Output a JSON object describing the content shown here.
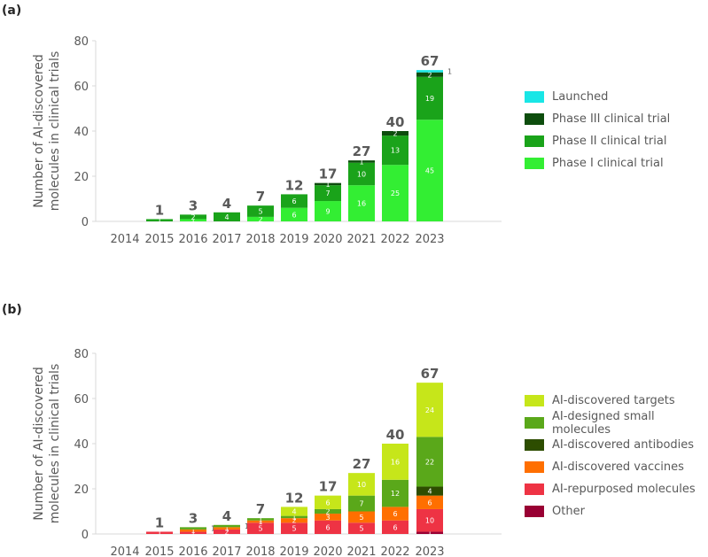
{
  "panels": [
    {
      "label": "(a)"
    },
    {
      "label": "(b)"
    }
  ],
  "chart_data": [
    {
      "type": "bar",
      "stacked": true,
      "ylabel": "Number of AI-discovered\nmolecules in clinical trials",
      "ylim": [
        0,
        80
      ],
      "yticks": [
        "0",
        "20",
        "40",
        "60",
        "80"
      ],
      "categories": [
        "2014",
        "2015",
        "2016",
        "2017",
        "2018",
        "2019",
        "2020",
        "2021",
        "2022",
        "2023"
      ],
      "totals": [
        "",
        "1",
        "3",
        "4",
        "7",
        "12",
        "17",
        "27",
        "40",
        "67"
      ],
      "legend_position": "right",
      "series": [
        {
          "name": "Phase I clinical trial",
          "color": "#33ee33",
          "values": [
            0,
            0,
            1,
            0,
            2,
            6,
            9,
            16,
            25,
            45
          ]
        },
        {
          "name": "Phase II clinical trial",
          "color": "#1aa31a",
          "values": [
            0,
            1,
            2,
            4,
            5,
            6,
            7,
            10,
            13,
            19
          ]
        },
        {
          "name": "Phase III clinical trial",
          "color": "#0d4d0d",
          "values": [
            0,
            0,
            0,
            0,
            0,
            0,
            1,
            1,
            2,
            2
          ]
        },
        {
          "name": "Launched",
          "color": "#19e6e6",
          "values": [
            0,
            0,
            0,
            0,
            0,
            0,
            0,
            0,
            0,
            1
          ]
        }
      ]
    },
    {
      "type": "bar",
      "stacked": true,
      "ylabel": "Number of AI-discovered\nmolecules in clinical trials",
      "ylim": [
        0,
        80
      ],
      "yticks": [
        "0",
        "20",
        "40",
        "60",
        "80"
      ],
      "categories": [
        "2014",
        "2015",
        "2016",
        "2017",
        "2018",
        "2019",
        "2020",
        "2021",
        "2022",
        "2023"
      ],
      "totals": [
        "",
        "1",
        "3",
        "4",
        "7",
        "12",
        "17",
        "27",
        "40",
        "67"
      ],
      "legend_position": "right",
      "series": [
        {
          "name": "Other",
          "color": "#990033",
          "values": [
            0,
            0,
            0,
            0,
            0,
            0,
            0,
            0,
            0,
            1
          ]
        },
        {
          "name": "AI-repurposed molecules",
          "color": "#ee3344",
          "values": [
            0,
            1,
            1,
            2,
            5,
            5,
            6,
            5,
            6,
            10
          ]
        },
        {
          "name": "AI-discovered vaccines",
          "color": "#ff6f00",
          "values": [
            0,
            0,
            1,
            1,
            1,
            2,
            3,
            5,
            6,
            6
          ]
        },
        {
          "name": "AI-discovered antibodies",
          "color": "#2d4d00",
          "values": [
            0,
            0,
            0,
            0,
            0,
            0,
            0,
            0,
            0,
            4
          ]
        },
        {
          "name": "AI-designed small molecules",
          "color": "#5aa81a",
          "values": [
            0,
            0,
            1,
            1,
            1,
            1,
            2,
            7,
            12,
            22
          ]
        },
        {
          "name": "AI-discovered targets",
          "color": "#c6e61a",
          "values": [
            0,
            0,
            0,
            0,
            0,
            4,
            6,
            10,
            16,
            24
          ]
        }
      ]
    }
  ]
}
